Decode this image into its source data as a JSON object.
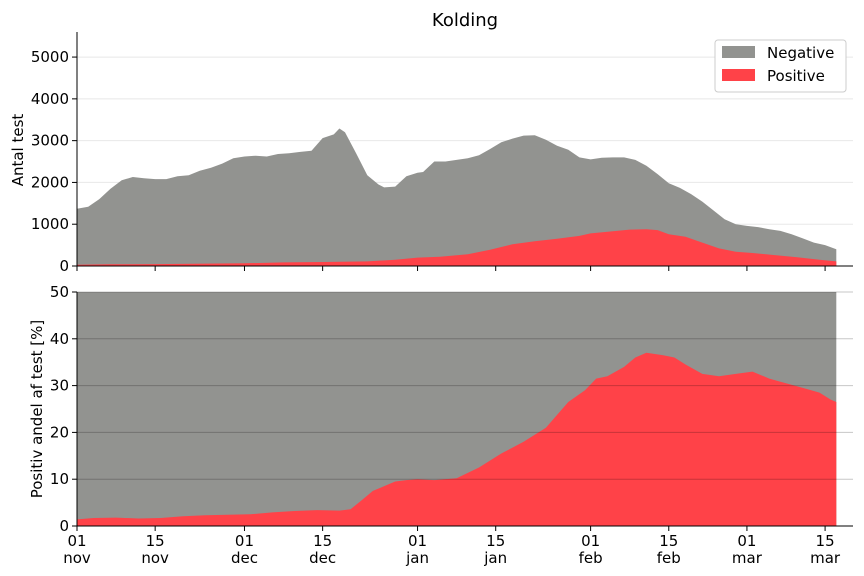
{
  "chart_data": {
    "type": "area",
    "title": "Kolding",
    "colors": {
      "negative": "#929390",
      "positive": "#ff4248"
    },
    "legend": {
      "placement": "top-right",
      "entries": [
        "Negative",
        "Positive"
      ]
    },
    "x_ticks": [
      {
        "date": "2020-11-01",
        "day": "01",
        "month": "nov"
      },
      {
        "date": "2020-11-15",
        "day": "15",
        "month": "nov"
      },
      {
        "date": "2020-12-01",
        "day": "01",
        "month": "dec"
      },
      {
        "date": "2020-12-15",
        "day": "15",
        "month": "dec"
      },
      {
        "date": "2021-01-01",
        "day": "01",
        "month": "jan"
      },
      {
        "date": "2021-01-15",
        "day": "15",
        "month": "jan"
      },
      {
        "date": "2021-02-01",
        "day": "01",
        "month": "feb"
      },
      {
        "date": "2021-02-15",
        "day": "15",
        "month": "feb"
      },
      {
        "date": "2021-03-01",
        "day": "01",
        "month": "mar"
      },
      {
        "date": "2021-03-15",
        "day": "15",
        "month": "mar"
      }
    ],
    "top_panel": {
      "ylabel": "Antal test",
      "ylim": [
        0,
        5600
      ],
      "yticks": [
        0,
        1000,
        2000,
        3000,
        4000,
        5000
      ],
      "grid": true,
      "series": [
        {
          "name": "Negative",
          "role": "total_tests",
          "points": [
            [
              "2020-11-01",
              1370
            ],
            [
              "2020-11-03",
              1420
            ],
            [
              "2020-11-05",
              1600
            ],
            [
              "2020-11-07",
              1850
            ],
            [
              "2020-11-09",
              2050
            ],
            [
              "2020-11-11",
              2130
            ],
            [
              "2020-11-13",
              2100
            ],
            [
              "2020-11-15",
              2080
            ],
            [
              "2020-11-17",
              2080
            ],
            [
              "2020-11-19",
              2150
            ],
            [
              "2020-11-21",
              2170
            ],
            [
              "2020-11-23",
              2280
            ],
            [
              "2020-11-25",
              2350
            ],
            [
              "2020-11-27",
              2450
            ],
            [
              "2020-11-29",
              2580
            ],
            [
              "2020-12-01",
              2620
            ],
            [
              "2020-12-03",
              2640
            ],
            [
              "2020-12-05",
              2620
            ],
            [
              "2020-12-07",
              2680
            ],
            [
              "2020-12-09",
              2700
            ],
            [
              "2020-12-11",
              2730
            ],
            [
              "2020-12-13",
              2760
            ],
            [
              "2020-12-15",
              3060
            ],
            [
              "2020-12-17",
              3150
            ],
            [
              "2020-12-18",
              3290
            ],
            [
              "2020-12-19",
              3200
            ],
            [
              "2020-12-21",
              2700
            ],
            [
              "2020-12-23",
              2170
            ],
            [
              "2020-12-25",
              1950
            ],
            [
              "2020-12-26",
              1880
            ],
            [
              "2020-12-28",
              1900
            ],
            [
              "2020-12-30",
              2150
            ],
            [
              "2021-01-01",
              2230
            ],
            [
              "2021-01-02",
              2250
            ],
            [
              "2021-01-04",
              2500
            ],
            [
              "2021-01-06",
              2500
            ],
            [
              "2021-01-08",
              2540
            ],
            [
              "2021-01-10",
              2580
            ],
            [
              "2021-01-12",
              2650
            ],
            [
              "2021-01-14",
              2800
            ],
            [
              "2021-01-16",
              2960
            ],
            [
              "2021-01-18",
              3050
            ],
            [
              "2021-01-20",
              3120
            ],
            [
              "2021-01-22",
              3130
            ],
            [
              "2021-01-24",
              3020
            ],
            [
              "2021-01-26",
              2880
            ],
            [
              "2021-01-28",
              2780
            ],
            [
              "2021-01-30",
              2600
            ],
            [
              "2021-02-01",
              2550
            ],
            [
              "2021-02-03",
              2590
            ],
            [
              "2021-02-05",
              2600
            ],
            [
              "2021-02-07",
              2600
            ],
            [
              "2021-02-09",
              2540
            ],
            [
              "2021-02-11",
              2400
            ],
            [
              "2021-02-13",
              2200
            ],
            [
              "2021-02-15",
              1980
            ],
            [
              "2021-02-17",
              1870
            ],
            [
              "2021-02-19",
              1720
            ],
            [
              "2021-02-21",
              1540
            ],
            [
              "2021-02-23",
              1330
            ],
            [
              "2021-02-25",
              1120
            ],
            [
              "2021-02-27",
              1000
            ],
            [
              "2021-03-01",
              960
            ],
            [
              "2021-03-03",
              930
            ],
            [
              "2021-03-05",
              880
            ],
            [
              "2021-03-07",
              840
            ],
            [
              "2021-03-09",
              760
            ],
            [
              "2021-03-11",
              660
            ],
            [
              "2021-03-13",
              560
            ],
            [
              "2021-03-15",
              500
            ],
            [
              "2021-03-17",
              400
            ]
          ]
        },
        {
          "name": "Positive",
          "role": "positive_tests",
          "points": [
            [
              "2020-11-01",
              30
            ],
            [
              "2020-11-07",
              40
            ],
            [
              "2020-11-15",
              45
            ],
            [
              "2020-11-22",
              55
            ],
            [
              "2020-12-01",
              65
            ],
            [
              "2020-12-08",
              85
            ],
            [
              "2020-12-15",
              95
            ],
            [
              "2020-12-23",
              110
            ],
            [
              "2020-12-28",
              150
            ],
            [
              "2021-01-01",
              200
            ],
            [
              "2021-01-05",
              220
            ],
            [
              "2021-01-10",
              280
            ],
            [
              "2021-01-14",
              390
            ],
            [
              "2021-01-18",
              520
            ],
            [
              "2021-01-22",
              590
            ],
            [
              "2021-01-26",
              650
            ],
            [
              "2021-01-30",
              720
            ],
            [
              "2021-02-01",
              780
            ],
            [
              "2021-02-05",
              830
            ],
            [
              "2021-02-08",
              870
            ],
            [
              "2021-02-11",
              880
            ],
            [
              "2021-02-13",
              860
            ],
            [
              "2021-02-15",
              760
            ],
            [
              "2021-02-18",
              700
            ],
            [
              "2021-02-21",
              560
            ],
            [
              "2021-02-24",
              420
            ],
            [
              "2021-02-27",
              340
            ],
            [
              "2021-03-02",
              310
            ],
            [
              "2021-03-06",
              260
            ],
            [
              "2021-03-10",
              210
            ],
            [
              "2021-03-14",
              150
            ],
            [
              "2021-03-17",
              110
            ]
          ]
        }
      ]
    },
    "bottom_panel": {
      "ylabel": "Positiv andel af test [%]",
      "ylim": [
        0,
        50
      ],
      "yticks": [
        0,
        10,
        20,
        30,
        40,
        50
      ],
      "grid": true,
      "series": [
        {
          "name": "Negative",
          "role": "background_to_100pct",
          "value": 100
        },
        {
          "name": "Positive",
          "role": "positive_share_pct",
          "points": [
            [
              "2020-11-01",
              1.4
            ],
            [
              "2020-11-04",
              1.7
            ],
            [
              "2020-11-08",
              1.8
            ],
            [
              "2020-11-12",
              1.6
            ],
            [
              "2020-11-16",
              1.7
            ],
            [
              "2020-11-20",
              2.1
            ],
            [
              "2020-11-24",
              2.3
            ],
            [
              "2020-11-28",
              2.4
            ],
            [
              "2020-12-02",
              2.5
            ],
            [
              "2020-12-06",
              2.9
            ],
            [
              "2020-12-10",
              3.2
            ],
            [
              "2020-12-14",
              3.4
            ],
            [
              "2020-12-18",
              3.3
            ],
            [
              "2020-12-20",
              3.6
            ],
            [
              "2020-12-22",
              5.5
            ],
            [
              "2020-12-24",
              7.5
            ],
            [
              "2020-12-28",
              9.5
            ],
            [
              "2020-12-30",
              9.8
            ],
            [
              "2021-01-01",
              10.0
            ],
            [
              "2021-01-04",
              9.8
            ],
            [
              "2021-01-08",
              10.2
            ],
            [
              "2021-01-12",
              12.5
            ],
            [
              "2021-01-16",
              15.5
            ],
            [
              "2021-01-20",
              18.0
            ],
            [
              "2021-01-24",
              21.0
            ],
            [
              "2021-01-28",
              26.5
            ],
            [
              "2021-01-31",
              29.0
            ],
            [
              "2021-02-02",
              31.5
            ],
            [
              "2021-02-04",
              32.0
            ],
            [
              "2021-02-07",
              34.0
            ],
            [
              "2021-02-09",
              36.0
            ],
            [
              "2021-02-11",
              37.0
            ],
            [
              "2021-02-14",
              36.5
            ],
            [
              "2021-02-16",
              36.0
            ],
            [
              "2021-02-18",
              34.5
            ],
            [
              "2021-02-21",
              32.5
            ],
            [
              "2021-02-24",
              32.0
            ],
            [
              "2021-02-27",
              32.5
            ],
            [
              "2021-03-02",
              33.0
            ],
            [
              "2021-03-05",
              31.5
            ],
            [
              "2021-03-08",
              30.5
            ],
            [
              "2021-03-11",
              29.5
            ],
            [
              "2021-03-14",
              28.5
            ],
            [
              "2021-03-16",
              27.0
            ],
            [
              "2021-03-17",
              26.5
            ]
          ]
        }
      ]
    }
  }
}
